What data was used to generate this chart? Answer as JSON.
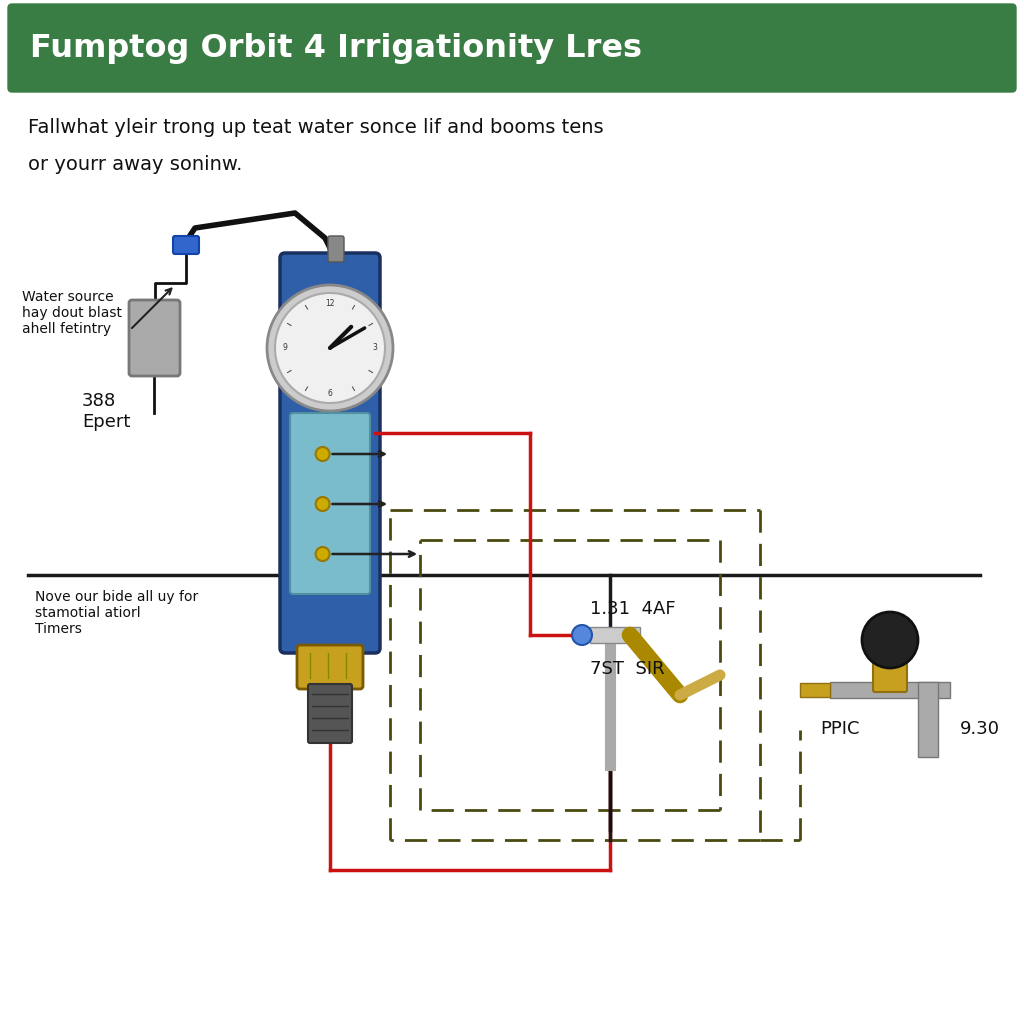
{
  "title": "Fumptog Orbit 4 Irrigationity Lres",
  "title_bg": "#3a7d44",
  "title_fg": "#ffffff",
  "subtitle_line1": "Fallwhat yleir trong up teat water sonce lif and booms tens",
  "subtitle_line2": "or yourr away soninw.",
  "label_water_source": "Water source\nhay dout blast\nahell fetintry",
  "label_388": "388\nEpert",
  "label_note": "Nove our bide all uy for\nstamotial atiorl\nTimers",
  "label_valve1": "1.31  4AF",
  "label_valve2": "7ST  SIR",
  "label_valve3": "PPIC",
  "label_valve4": "9.30",
  "bg_color": "#ffffff",
  "timer_body_color": "#2f5fa8",
  "timer_face_color": "#f0f0f0",
  "timer_lower_color": "#7abccc",
  "red_line_color": "#cc1111",
  "dashed_line_color": "#4a4a10",
  "black_line_color": "#1a1a1a",
  "connector_color": "#c8a020",
  "valve_blue": "#4488dd",
  "valve_gray": "#999999",
  "valve_gold": "#c8a020",
  "valve2_gray": "#888888",
  "knob_color": "#222222",
  "cable_color": "#111111",
  "filter_color": "#aaaaaa"
}
